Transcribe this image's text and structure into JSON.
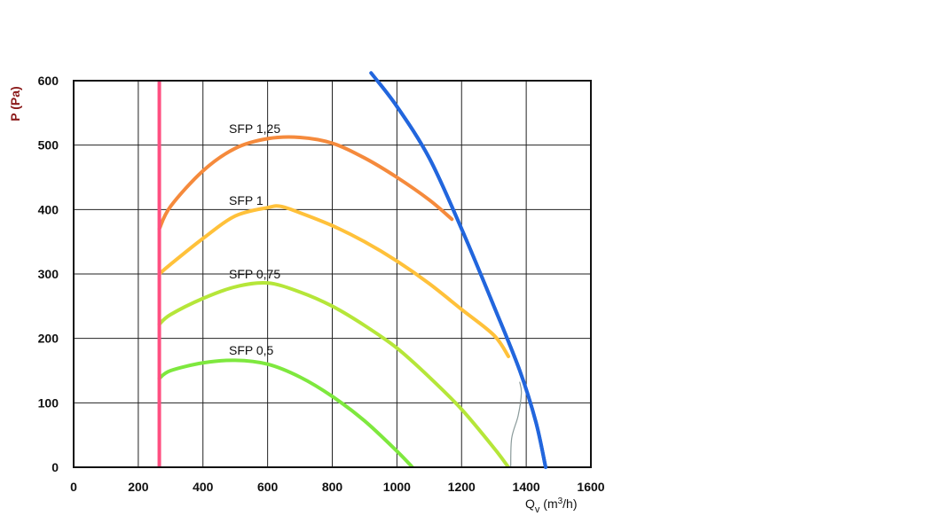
{
  "chart_data": {
    "type": "line",
    "xlabel": {
      "main": "Q",
      "sub": "v",
      "rest_pre": " (m",
      "sup": "3",
      "rest_post": "/h)"
    },
    "ylabel": "P (Pa)",
    "xlim": [
      0,
      1600
    ],
    "ylim": [
      0,
      600
    ],
    "x_ticks": [
      "0",
      "200",
      "400",
      "600",
      "800",
      "1000",
      "1200",
      "1400",
      "1600"
    ],
    "y_ticks": [
      "0",
      "100",
      "200",
      "300",
      "400",
      "500",
      "600"
    ],
    "x_tick_values": [
      0,
      200,
      400,
      600,
      800,
      1000,
      1200,
      1400,
      1600
    ],
    "y_tick_values": [
      0,
      100,
      200,
      300,
      400,
      500,
      600
    ],
    "grid": true,
    "series": [
      {
        "name": "SFP 1,25",
        "color": "#f58a3c",
        "points": [
          [
            265,
            370
          ],
          [
            300,
            405
          ],
          [
            400,
            460
          ],
          [
            500,
            495
          ],
          [
            600,
            510
          ],
          [
            700,
            512
          ],
          [
            800,
            503
          ],
          [
            900,
            480
          ],
          [
            1000,
            450
          ],
          [
            1100,
            415
          ],
          [
            1170,
            385
          ]
        ]
      },
      {
        "name": "SFP 1",
        "color": "#ffc13a",
        "points": [
          [
            265,
            300
          ],
          [
            300,
            315
          ],
          [
            400,
            355
          ],
          [
            500,
            390
          ],
          [
            600,
            403
          ],
          [
            640,
            405
          ],
          [
            700,
            395
          ],
          [
            800,
            375
          ],
          [
            900,
            350
          ],
          [
            1000,
            320
          ],
          [
            1100,
            285
          ],
          [
            1200,
            245
          ],
          [
            1300,
            205
          ],
          [
            1345,
            172
          ]
        ]
      },
      {
        "name": "SFP 0,75",
        "color": "#b5e639",
        "points": [
          [
            265,
            222
          ],
          [
            300,
            237
          ],
          [
            400,
            262
          ],
          [
            500,
            280
          ],
          [
            600,
            286
          ],
          [
            700,
            272
          ],
          [
            800,
            250
          ],
          [
            900,
            220
          ],
          [
            1000,
            185
          ],
          [
            1100,
            140
          ],
          [
            1200,
            90
          ],
          [
            1300,
            30
          ],
          [
            1345,
            0
          ]
        ]
      },
      {
        "name": "SFP 0,5",
        "color": "#7ee83e",
        "points": [
          [
            265,
            138
          ],
          [
            300,
            150
          ],
          [
            400,
            162
          ],
          [
            500,
            166
          ],
          [
            600,
            160
          ],
          [
            700,
            140
          ],
          [
            800,
            110
          ],
          [
            900,
            72
          ],
          [
            1000,
            25
          ],
          [
            1048,
            0
          ]
        ]
      },
      {
        "name": "",
        "color": "#2266dd",
        "points": [
          [
            920,
            612
          ],
          [
            1000,
            560
          ],
          [
            1100,
            480
          ],
          [
            1200,
            370
          ],
          [
            1300,
            250
          ],
          [
            1380,
            150
          ],
          [
            1430,
            70
          ],
          [
            1460,
            0
          ]
        ]
      },
      {
        "name": "",
        "color": "#ff4f81",
        "points": [
          [
            265,
            0
          ],
          [
            265,
            612
          ]
        ]
      },
      {
        "name": "",
        "color": "#8a9a9a",
        "points": [
          [
            1352,
            0
          ],
          [
            1355,
            45
          ],
          [
            1375,
            80
          ],
          [
            1385,
            115
          ],
          [
            1380,
            132
          ]
        ]
      }
    ]
  }
}
